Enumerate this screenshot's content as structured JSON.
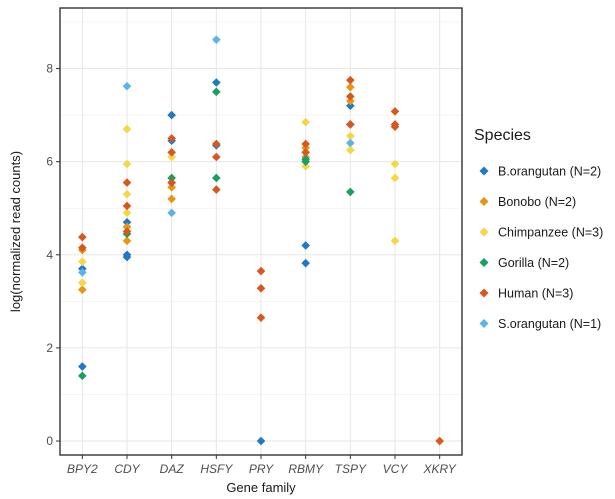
{
  "chart_data": {
    "type": "scatter",
    "xlabel": "Gene family",
    "ylabel": "log(normalized read counts)",
    "categories": [
      "BPY2",
      "CDY",
      "DAZ",
      "HSFY",
      "PRY",
      "RBMY",
      "TSPY",
      "VCY",
      "XKRY"
    ],
    "ylim": [
      -0.3,
      9.3
    ],
    "yticks": [
      0,
      2,
      4,
      6,
      8
    ],
    "grid": true,
    "legend": {
      "title": "Species",
      "placement": "right"
    },
    "series": [
      {
        "name": "B.orangutan (N=2)",
        "color": "#1f78c8",
        "points": [
          {
            "x": "BPY2",
            "y": 3.7
          },
          {
            "x": "BPY2",
            "y": 1.6
          },
          {
            "x": "CDY",
            "y": 4.7
          },
          {
            "x": "CDY",
            "y": 4.0
          },
          {
            "x": "CDY",
            "y": 3.95
          },
          {
            "x": "DAZ",
            "y": 7.0
          },
          {
            "x": "DAZ",
            "y": 6.45
          },
          {
            "x": "HSFY",
            "y": 7.7
          },
          {
            "x": "HSFY",
            "y": 6.35
          },
          {
            "x": "PRY",
            "y": 0.0
          },
          {
            "x": "RBMY",
            "y": 4.2
          },
          {
            "x": "RBMY",
            "y": 3.82
          },
          {
            "x": "TSPY",
            "y": 7.2
          }
        ]
      },
      {
        "name": "Bonobo (N=2)",
        "color": "#e6960f",
        "points": [
          {
            "x": "BPY2",
            "y": 4.1
          },
          {
            "x": "BPY2",
            "y": 3.25
          },
          {
            "x": "CDY",
            "y": 4.6
          },
          {
            "x": "CDY",
            "y": 4.3
          },
          {
            "x": "DAZ",
            "y": 5.45
          },
          {
            "x": "DAZ",
            "y": 5.2
          },
          {
            "x": "RBMY",
            "y": 6.3
          },
          {
            "x": "RBMY",
            "y": 6.1
          },
          {
            "x": "TSPY",
            "y": 7.6
          },
          {
            "x": "TSPY",
            "y": 7.3
          }
        ]
      },
      {
        "name": "Chimpanzee (N=3)",
        "color": "#f5d742",
        "points": [
          {
            "x": "BPY2",
            "y": 3.85
          },
          {
            "x": "BPY2",
            "y": 3.4
          },
          {
            "x": "CDY",
            "y": 6.7
          },
          {
            "x": "CDY",
            "y": 5.95
          },
          {
            "x": "CDY",
            "y": 5.3
          },
          {
            "x": "CDY",
            "y": 4.9
          },
          {
            "x": "DAZ",
            "y": 6.1
          },
          {
            "x": "RBMY",
            "y": 6.85
          },
          {
            "x": "RBMY",
            "y": 5.9
          },
          {
            "x": "TSPY",
            "y": 6.55
          },
          {
            "x": "TSPY",
            "y": 6.25
          },
          {
            "x": "VCY",
            "y": 5.95
          },
          {
            "x": "VCY",
            "y": 5.65
          },
          {
            "x": "VCY",
            "y": 4.3
          }
        ]
      },
      {
        "name": "Gorilla (N=2)",
        "color": "#1a9e62",
        "points": [
          {
            "x": "BPY2",
            "y": 1.4
          },
          {
            "x": "CDY",
            "y": 4.45
          },
          {
            "x": "DAZ",
            "y": 5.65
          },
          {
            "x": "DAZ",
            "y": 5.55
          },
          {
            "x": "HSFY",
            "y": 7.5
          },
          {
            "x": "HSFY",
            "y": 5.65
          },
          {
            "x": "RBMY",
            "y": 6.05
          },
          {
            "x": "RBMY",
            "y": 6.0
          },
          {
            "x": "TSPY",
            "y": 6.8
          },
          {
            "x": "TSPY",
            "y": 5.35
          }
        ]
      },
      {
        "name": "Human (N=3)",
        "color": "#d9561c",
        "points": [
          {
            "x": "BPY2",
            "y": 4.38
          },
          {
            "x": "BPY2",
            "y": 4.15
          },
          {
            "x": "CDY",
            "y": 5.55
          },
          {
            "x": "CDY",
            "y": 5.05
          },
          {
            "x": "CDY",
            "y": 4.5
          },
          {
            "x": "DAZ",
            "y": 6.5
          },
          {
            "x": "DAZ",
            "y": 6.2
          },
          {
            "x": "DAZ",
            "y": 5.55
          },
          {
            "x": "HSFY",
            "y": 6.38
          },
          {
            "x": "HSFY",
            "y": 6.1
          },
          {
            "x": "HSFY",
            "y": 5.4
          },
          {
            "x": "PRY",
            "y": 3.65
          },
          {
            "x": "PRY",
            "y": 3.28
          },
          {
            "x": "PRY",
            "y": 2.65
          },
          {
            "x": "RBMY",
            "y": 6.38
          },
          {
            "x": "RBMY",
            "y": 6.2
          },
          {
            "x": "TSPY",
            "y": 7.75
          },
          {
            "x": "TSPY",
            "y": 7.4
          },
          {
            "x": "TSPY",
            "y": 6.8
          },
          {
            "x": "VCY",
            "y": 7.08
          },
          {
            "x": "VCY",
            "y": 6.8
          },
          {
            "x": "VCY",
            "y": 6.75
          },
          {
            "x": "XKRY",
            "y": 0.0
          }
        ]
      },
      {
        "name": "S.orangutan (N=1)",
        "color": "#5ab4ea",
        "points": [
          {
            "x": "BPY2",
            "y": 3.62
          },
          {
            "x": "CDY",
            "y": 7.62
          },
          {
            "x": "DAZ",
            "y": 4.9
          },
          {
            "x": "HSFY",
            "y": 8.62
          },
          {
            "x": "TSPY",
            "y": 6.4
          }
        ]
      }
    ]
  }
}
